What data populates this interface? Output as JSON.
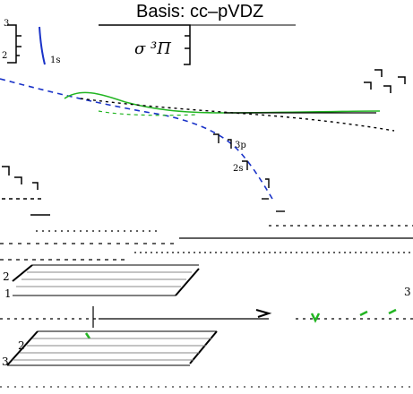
{
  "title": "Basis: cc–pVDZ",
  "state_label": "σ ³Π",
  "labels": {
    "tick_3_top": "3",
    "tick_2_top": "2",
    "tick_2_lower_a": "2",
    "tick_1_lower_a": "1",
    "tick_2_lower_b": "2",
    "tick_3_lower_b": "3",
    "tick_3_right": "3",
    "orbital_1s": "1s",
    "frag_3p": "3p",
    "frag_2s": "2s"
  },
  "colors": {
    "blue": "#1a33c8",
    "green": "#22b522",
    "black": "#000000",
    "gray": "#888888"
  }
}
